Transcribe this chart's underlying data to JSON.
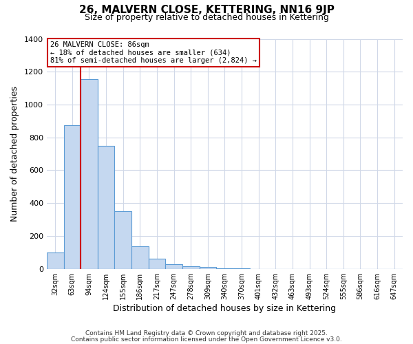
{
  "title": "26, MALVERN CLOSE, KETTERING, NN16 9JP",
  "subtitle": "Size of property relative to detached houses in Kettering",
  "xlabel": "Distribution of detached houses by size in Kettering",
  "ylabel": "Number of detached properties",
  "bar_color": "#c5d8f0",
  "bar_edge_color": "#5b9bd5",
  "background_color": "#ffffff",
  "grid_color": "#d0d8e8",
  "categories": [
    "32sqm",
    "63sqm",
    "94sqm",
    "124sqm",
    "155sqm",
    "186sqm",
    "217sqm",
    "247sqm",
    "278sqm",
    "309sqm",
    "340sqm",
    "370sqm",
    "401sqm",
    "432sqm",
    "463sqm",
    "493sqm",
    "524sqm",
    "555sqm",
    "586sqm",
    "616sqm",
    "647sqm"
  ],
  "values": [
    100,
    875,
    1155,
    750,
    350,
    135,
    60,
    30,
    15,
    10,
    5,
    4,
    0,
    0,
    0,
    0,
    0,
    0,
    0,
    0,
    0
  ],
  "red_line_bin": 2,
  "red_line_color": "#cc0000",
  "ylim": [
    0,
    1400
  ],
  "yticks": [
    0,
    200,
    400,
    600,
    800,
    1000,
    1200,
    1400
  ],
  "annotation_title": "26 MALVERN CLOSE: 86sqm",
  "annotation_line1": "← 18% of detached houses are smaller (634)",
  "annotation_line2": "81% of semi-detached houses are larger (2,824) →",
  "annotation_box_color": "#ffffff",
  "annotation_box_edge": "#cc0000",
  "footer1": "Contains HM Land Registry data © Crown copyright and database right 2025.",
  "footer2": "Contains public sector information licensed under the Open Government Licence v3.0.",
  "figsize": [
    6.0,
    5.0
  ],
  "dpi": 100
}
